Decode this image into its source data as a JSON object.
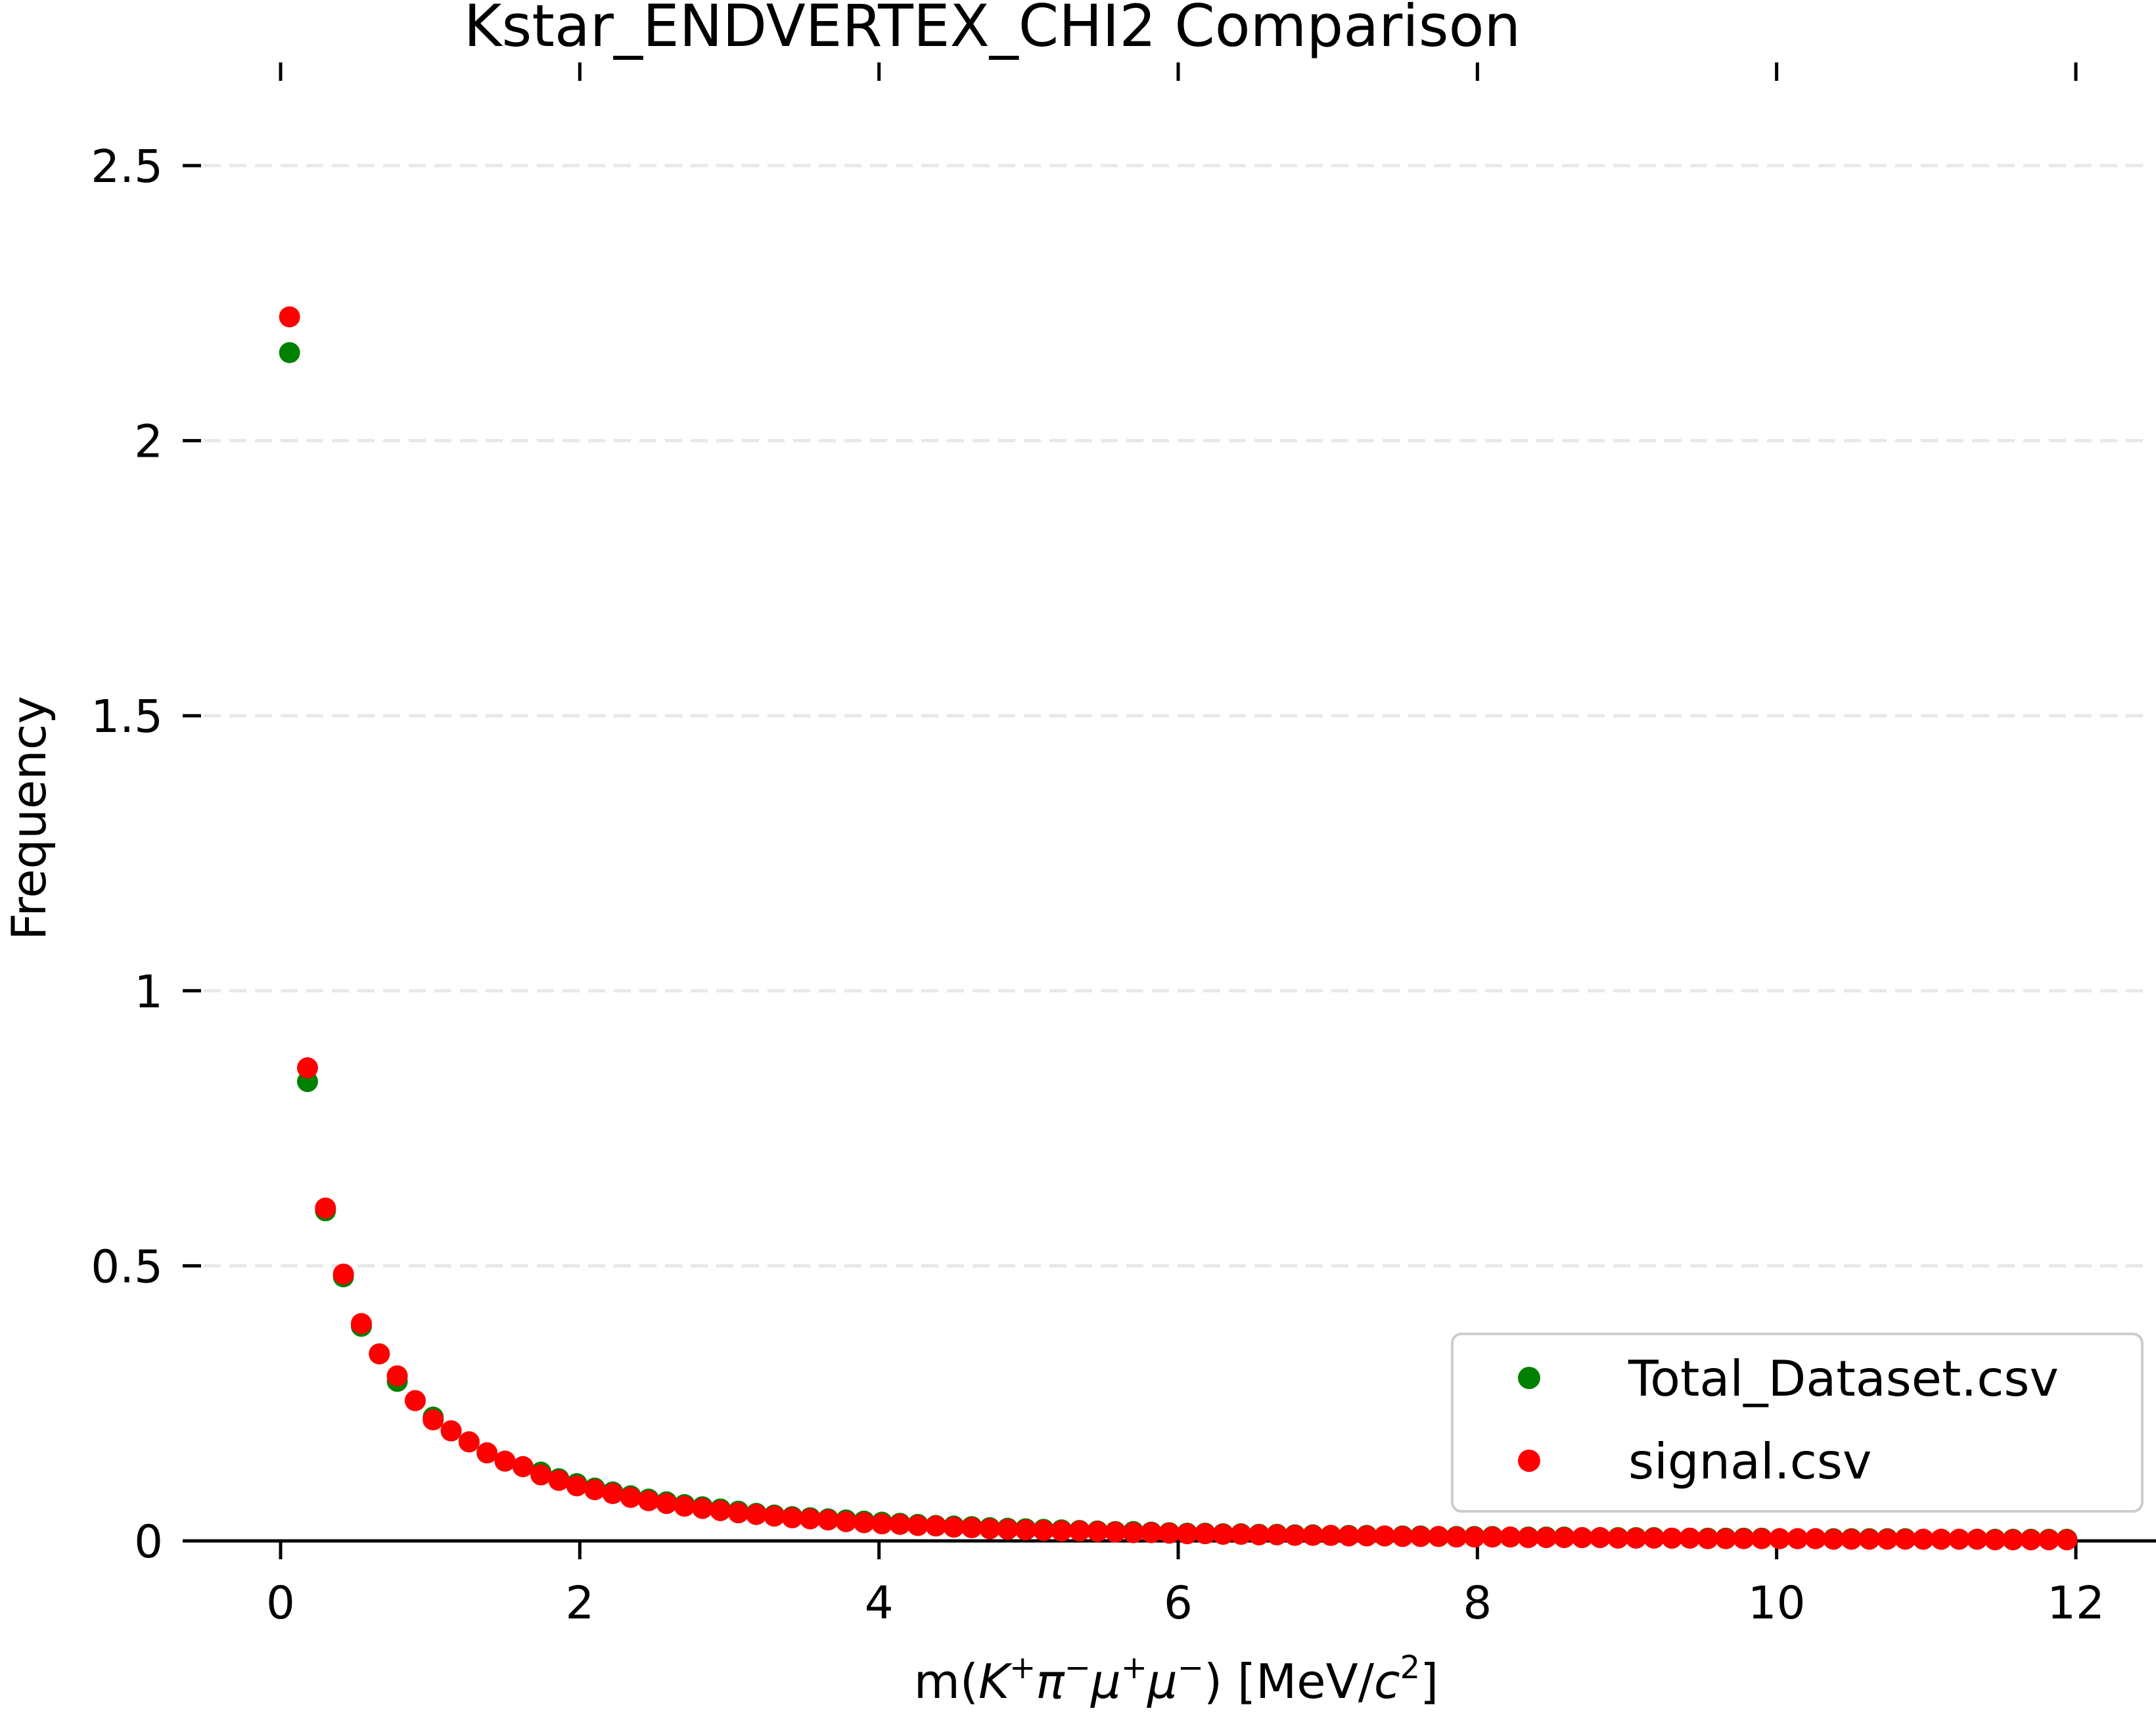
{
  "chart_data": {
    "type": "scatter",
    "title": "Kstar_ENDVERTEX_CHI2 Comparison",
    "xlabel": {
      "prefix": "m(",
      "K": "K",
      "K_sup": "+",
      "pi": "π",
      "pi_sup": "−",
      "mu1": "μ",
      "mu1_sup": "+",
      "mu2": "μ",
      "mu2_sup": "−",
      "unit_open": ") [MeV/",
      "c": "c",
      "c_sup": "2",
      "unit_close": "]"
    },
    "ylabel": "Frequency",
    "xlim": [
      -0.6,
      12.2
    ],
    "ylim": [
      0,
      2.5
    ],
    "x_ticks": [
      0,
      2,
      4,
      6,
      8,
      10,
      12
    ],
    "x_tick_labels": [
      "0",
      "2",
      "4",
      "6",
      "8",
      "10",
      "12"
    ],
    "y_ticks": [
      0,
      0.5,
      1,
      1.5,
      2,
      2.5
    ],
    "y_tick_labels": [
      "0",
      "0.5",
      "1",
      "1.5",
      "2",
      "2.5"
    ],
    "grid": "horizontal-dashed",
    "legend_position": "lower-right",
    "series": [
      {
        "name": "Total_Dataset.csv",
        "color": "#008000",
        "x_start": 0.06,
        "x_step": 0.12,
        "values": [
          2.16,
          0.835,
          0.6,
          0.48,
          0.39,
          0.34,
          0.29,
          0.255,
          0.225,
          0.2,
          0.18,
          0.16,
          0.145,
          0.135,
          0.125,
          0.113,
          0.104,
          0.096,
          0.089,
          0.082,
          0.076,
          0.071,
          0.066,
          0.062,
          0.058,
          0.054,
          0.05,
          0.047,
          0.044,
          0.042,
          0.04,
          0.038,
          0.036,
          0.034,
          0.032,
          0.03,
          0.028,
          0.027,
          0.026,
          0.024,
          0.023,
          0.022,
          0.021,
          0.02,
          0.019,
          0.018,
          0.017,
          0.017,
          0.016,
          0.015,
          0.014,
          0.014,
          0.013,
          0.013,
          0.012,
          0.012,
          0.011,
          0.011,
          0.01,
          0.01,
          0.01,
          0.009,
          0.009,
          0.009,
          0.008,
          0.008,
          0.008,
          0.008,
          0.007,
          0.007,
          0.007,
          0.007,
          0.006,
          0.006,
          0.006,
          0.006,
          0.006,
          0.005,
          0.005,
          0.005,
          0.005,
          0.005,
          0.005,
          0.004,
          0.004,
          0.004,
          0.004,
          0.004,
          0.004,
          0.004,
          0.004,
          0.003,
          0.003,
          0.003,
          0.003,
          0.003,
          0.003,
          0.003,
          0.003,
          0.003
        ]
      },
      {
        "name": "signal.csv",
        "color": "#ff0000",
        "x_start": 0.06,
        "x_step": 0.12,
        "values": [
          2.225,
          0.86,
          0.605,
          0.485,
          0.395,
          0.34,
          0.3,
          0.255,
          0.22,
          0.2,
          0.18,
          0.16,
          0.145,
          0.135,
          0.12,
          0.11,
          0.1,
          0.093,
          0.086,
          0.079,
          0.073,
          0.068,
          0.063,
          0.059,
          0.055,
          0.051,
          0.048,
          0.045,
          0.042,
          0.04,
          0.038,
          0.035,
          0.033,
          0.031,
          0.03,
          0.028,
          0.027,
          0.025,
          0.024,
          0.022,
          0.021,
          0.02,
          0.019,
          0.018,
          0.018,
          0.017,
          0.016,
          0.015,
          0.015,
          0.014,
          0.013,
          0.013,
          0.012,
          0.012,
          0.011,
          0.011,
          0.01,
          0.01,
          0.01,
          0.009,
          0.009,
          0.009,
          0.008,
          0.008,
          0.008,
          0.007,
          0.007,
          0.007,
          0.007,
          0.006,
          0.006,
          0.006,
          0.006,
          0.006,
          0.005,
          0.005,
          0.005,
          0.005,
          0.005,
          0.004,
          0.004,
          0.004,
          0.004,
          0.004,
          0.004,
          0.004,
          0.003,
          0.003,
          0.003,
          0.003,
          0.003,
          0.003,
          0.003,
          0.003,
          0.003,
          0.002,
          0.002,
          0.002,
          0.002,
          0.002
        ]
      }
    ]
  }
}
